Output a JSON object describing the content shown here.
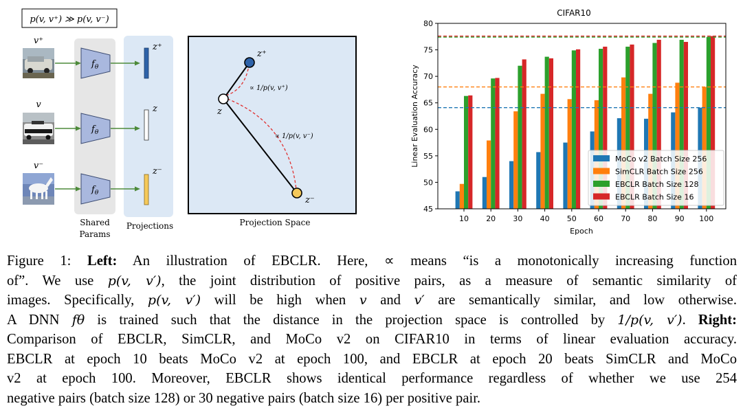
{
  "left_figure": {
    "top_formula": "p(v, v⁺) ≫ p(v, v⁻)",
    "inputs": [
      {
        "label": "v⁺"
      },
      {
        "label": "v"
      },
      {
        "label": "v⁻"
      }
    ],
    "encoder_label": "f",
    "encoder_sub": "θ",
    "projection_labels": [
      "z⁺",
      "z",
      "z⁻"
    ],
    "shared_params_label_1": "Shared",
    "shared_params_label_2": "Params",
    "projections_label": "Projections",
    "space_caption": "Projection Space",
    "space": {
      "z_plus": "z⁺",
      "z": "z",
      "z_minus": "z⁻",
      "prop_pos": "∝ 1/p(v, v⁺)",
      "prop_neg": "∝ 1/p(v, v⁻)"
    },
    "colors": {
      "gray_panel": "#e6e6e6",
      "blue_panel": "#dce8f5",
      "encoder": "#a9b8de",
      "arrow": "#4d8a3a",
      "z_plus": "#2e62a8",
      "z": "#ffffff",
      "z_minus": "#f5c95a",
      "space_bg": "#dce8f5",
      "dashed": "#e03030"
    }
  },
  "chart_data": {
    "type": "bar",
    "title": "CIFAR10",
    "xlabel": "Epoch",
    "ylabel": "Linear Evaluation Accuracy",
    "categories": [
      "10",
      "20",
      "30",
      "40",
      "50",
      "60",
      "70",
      "80",
      "90",
      "100"
    ],
    "ylim": [
      45,
      80
    ],
    "yticks": [
      45,
      50,
      55,
      60,
      65,
      70,
      75,
      80
    ],
    "legend_position": "bottom-right",
    "series": [
      {
        "name": "MoCo v2 Batch Size 256",
        "color": "#1f77b4",
        "values": [
          48.3,
          51.0,
          54.0,
          55.7,
          57.5,
          59.6,
          62.1,
          62.0,
          63.2,
          64.1
        ]
      },
      {
        "name": "SimCLR Batch Size 256",
        "color": "#ff7f0e",
        "values": [
          49.7,
          57.9,
          63.4,
          66.7,
          65.7,
          65.5,
          69.8,
          66.7,
          68.8,
          68.0
        ]
      },
      {
        "name": "EBCLR Batch Size 128",
        "color": "#2ca02c",
        "values": [
          66.3,
          69.6,
          72.0,
          73.7,
          74.9,
          75.2,
          75.6,
          76.3,
          76.9,
          77.4
        ]
      },
      {
        "name": "EBCLR Batch Size 16",
        "color": "#d62728",
        "values": [
          66.4,
          69.7,
          73.2,
          73.4,
          75.1,
          75.6,
          76.0,
          76.9,
          76.5,
          77.6
        ]
      }
    ],
    "reference_lines": [
      {
        "series": "MoCo v2 Batch Size 256",
        "value": 64.1
      },
      {
        "series": "SimCLR Batch Size 256",
        "value": 68.0
      },
      {
        "series": "EBCLR Batch Size 128",
        "value": 77.4
      },
      {
        "series": "EBCLR Batch Size 16",
        "value": 77.6
      }
    ]
  },
  "caption": {
    "figure_label": "Figure 1:",
    "left_label": "Left:",
    "s1": "An illustration of EBCLR. Here, ∝ means “is a monotonically increasing function",
    "s2": "of”. We use ",
    "p_vv": "p(v, v′)",
    "s3": ", the joint distribution of positive pairs, as a measure of semantic similarity of",
    "s4": "images. Specifically, ",
    "s5": " will be high when ",
    "v": "v",
    "and": " and ",
    "vprime": "v′",
    "s6": " are semantically similar, and low otherwise.",
    "s7": "A DNN ",
    "f_theta": "fθ",
    "s8": " is trained such that the distance in the projection space is controlled by ",
    "inv_p": "1/p(v, v′)",
    "dot": ".",
    "right_label": "Right:",
    "s9": "Comparison of EBCLR, SimCLR, and MoCo v2 on CIFAR10 in terms of linear evaluation accuracy.",
    "s10": "EBCLR at epoch 10 beats MoCo v2 at epoch 100, and EBCLR at epoch 20 beats SimCLR and MoCo",
    "s11": "v2 at epoch 100. Moreover, EBCLR shows identical performance regardless of whether we use 254",
    "s12": "negative pairs (batch size 128) or 30 negative pairs (batch size 16) per positive pair."
  }
}
